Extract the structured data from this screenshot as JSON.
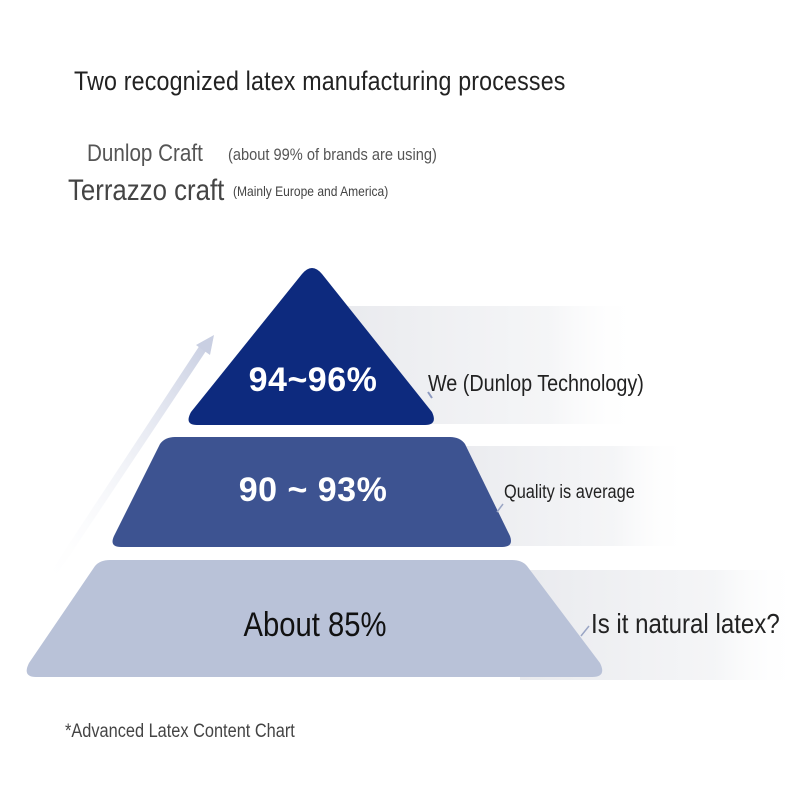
{
  "title": "Two recognized latex manufacturing processes",
  "processes": [
    {
      "name": "Dunlop Craft",
      "note": "(about 99% of brands are using)"
    },
    {
      "name": "Terrazzo craft",
      "note": "(Mainly Europe and America)"
    }
  ],
  "pyramid": {
    "tiers": [
      {
        "value": "94~96%",
        "description": "We (Dunlop Technology)",
        "color": "#0d2a7e"
      },
      {
        "value": "90 ~ 93%",
        "description": "Quality is average",
        "color": "#3d5391"
      },
      {
        "value": "About 85%",
        "description": "Is it natural latex?",
        "color": "#b9c2d8"
      }
    ]
  },
  "footnote": "*Advanced Latex Content Chart"
}
